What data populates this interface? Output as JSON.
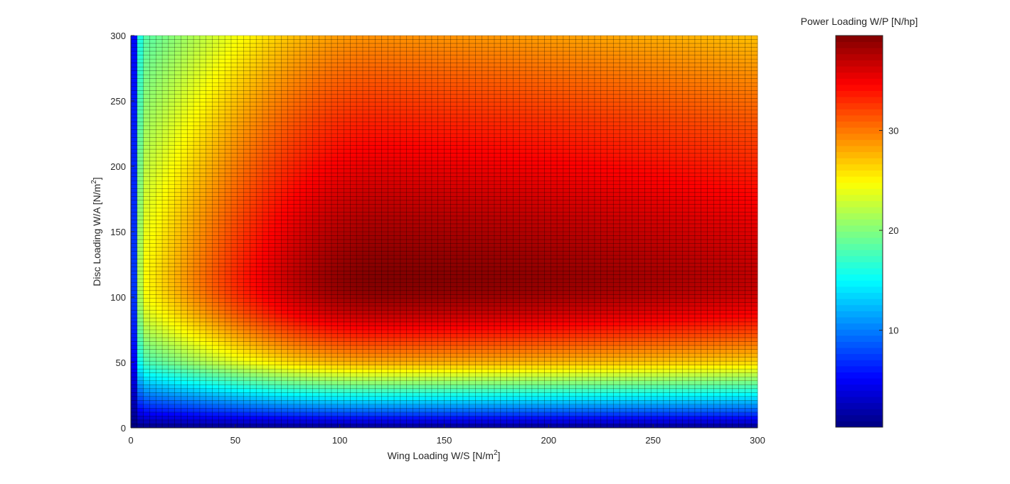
{
  "chart_data": {
    "type": "heatmap",
    "title": "",
    "xlabel": "Wing Loading W/S [N/m",
    "xlabel_sup": "2",
    "xlabel_end": "]",
    "ylabel": "Disc Loading W/A [N/m",
    "ylabel_sup": "2",
    "ylabel_end": "]",
    "xlim": [
      0,
      300
    ],
    "ylim": [
      0,
      300
    ],
    "x_ticks": [
      0,
      50,
      100,
      150,
      200,
      250,
      300
    ],
    "y_ticks": [
      0,
      50,
      100,
      150,
      200,
      250,
      300
    ],
    "grid_step": 3,
    "colormap": "jet",
    "colorbar": {
      "label": "Power Loading W/P [N/hp]",
      "range": [
        0.3,
        39.5
      ],
      "ticks": [
        10,
        20,
        30
      ]
    },
    "surface_model": {
      "description": "Approximate cell value W/P at (W/S, W/A)",
      "peak_value": 39.4,
      "peak_disc_loading": 115,
      "peak_wing_loading": 120,
      "value_at_disc_300": 29,
      "value_at_disc_50": 28,
      "value_at_disc_0": 0.3,
      "value_at_wing_0": 0.3,
      "value_at_wing_5": 24,
      "value_at_wing_300_disc_115": 37
    },
    "sample_values": [
      {
        "wing_loading": 0,
        "disc_loading": 150,
        "power_loading": 0.3
      },
      {
        "wing_loading": 6,
        "disc_loading": 150,
        "power_loading": 25
      },
      {
        "wing_loading": 120,
        "disc_loading": 115,
        "power_loading": 39.4
      },
      {
        "wing_loading": 120,
        "disc_loading": 300,
        "power_loading": 29
      },
      {
        "wing_loading": 120,
        "disc_loading": 50,
        "power_loading": 28
      },
      {
        "wing_loading": 120,
        "disc_loading": 20,
        "power_loading": 12
      },
      {
        "wing_loading": 120,
        "disc_loading": 0,
        "power_loading": 0.3
      },
      {
        "wing_loading": 300,
        "disc_loading": 115,
        "power_loading": 37
      }
    ]
  }
}
